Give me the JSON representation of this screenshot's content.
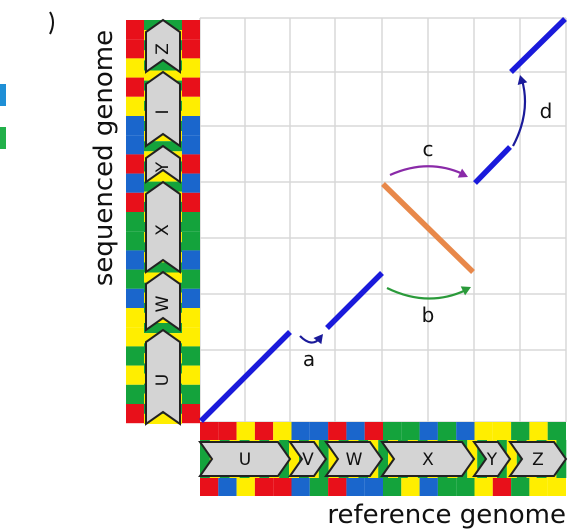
{
  "axes": {
    "x_label": "reference genome",
    "y_label": "sequenced genome"
  },
  "reference_genes": [
    "U",
    "V",
    "W",
    "X",
    "Y",
    "Z"
  ],
  "sequenced_genes": [
    "U",
    "W",
    "X",
    "Y",
    "I",
    "Z"
  ],
  "events": {
    "a": "a",
    "b": "b",
    "c": "c",
    "d": "d"
  },
  "colors": {
    "match_line": "#1a1adb",
    "inversion_line": "#e8884a",
    "arrow_a": "#1a1a9a",
    "arrow_b": "#2a9a3a",
    "arrow_c": "#8a2aa8",
    "arrow_d": "#1a1a9a",
    "grid": "#d8d8d8",
    "gene_fill": "#d4d4d4",
    "gene_stroke": "#222222",
    "base_red": "#e8101a",
    "base_yellow": "#ffee00",
    "base_green": "#14a33c",
    "base_blue": "#1a66cc",
    "edge_blue": "#1f8fd6",
    "edge_green": "#22b04a"
  }
}
